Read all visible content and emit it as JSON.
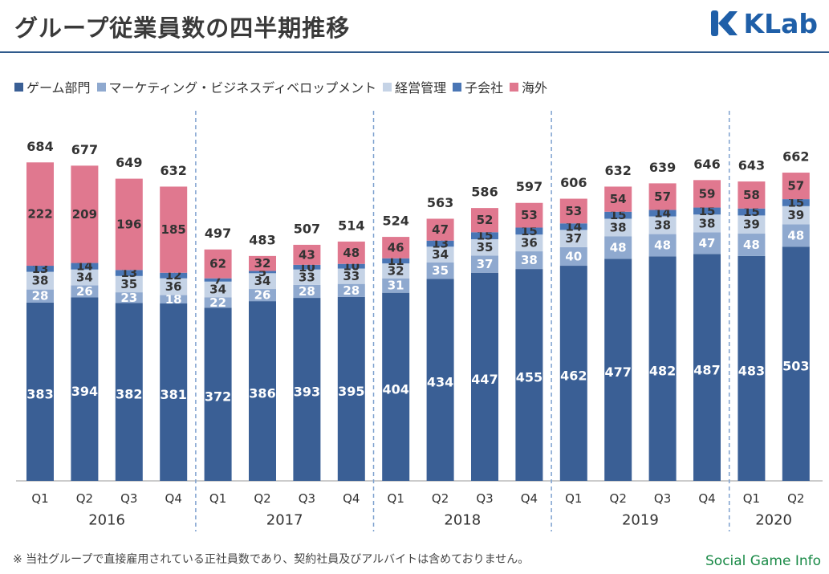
{
  "header": {
    "title": "グループ従業員数の四半期推移",
    "logo_text": "KLab",
    "rule_color": "#2f5a8c"
  },
  "footnote": "※ 当社グループで直接雇用されている正社員数であり、契約社員及びアルバイトは含めておりません。",
  "watermark": "Social Game Info",
  "chart_data": {
    "type": "bar",
    "stacked": true,
    "title": "",
    "xlabel": "",
    "ylabel": "",
    "ylim": [
      0,
      700
    ],
    "grid": false,
    "legend_position": "top-left",
    "years": [
      "2016",
      "2017",
      "2018",
      "2019",
      "2020"
    ],
    "groups": [
      4,
      4,
      4,
      4,
      2
    ],
    "categories": [
      "Q1",
      "Q2",
      "Q3",
      "Q4",
      "Q1",
      "Q2",
      "Q3",
      "Q4",
      "Q1",
      "Q2",
      "Q3",
      "Q4",
      "Q1",
      "Q2",
      "Q3",
      "Q4",
      "Q1",
      "Q2"
    ],
    "totals": [
      684,
      677,
      649,
      632,
      497,
      483,
      507,
      514,
      524,
      563,
      586,
      597,
      606,
      632,
      639,
      646,
      643,
      662
    ],
    "series": [
      {
        "name": "ゲーム部門",
        "color": "#3a5f95",
        "label_color": "#ffffff",
        "values": [
          383,
          394,
          382,
          381,
          372,
          386,
          393,
          395,
          404,
          434,
          447,
          455,
          462,
          477,
          482,
          487,
          483,
          503
        ]
      },
      {
        "name": "マーケティング・ビジネスディベロップメント",
        "color": "#8fa9cf",
        "label_color": "#ffffff",
        "values": [
          28,
          26,
          23,
          18,
          22,
          26,
          28,
          28,
          31,
          35,
          37,
          38,
          40,
          48,
          48,
          47,
          48,
          48
        ]
      },
      {
        "name": "経営管理",
        "color": "#c5d3e6",
        "label_color": "#333333",
        "values": [
          38,
          34,
          35,
          36,
          34,
          34,
          33,
          33,
          32,
          34,
          35,
          36,
          37,
          38,
          38,
          38,
          39,
          39
        ]
      },
      {
        "name": "子会社",
        "color": "#4a76b5",
        "label_color": "#333333",
        "values": [
          13,
          14,
          13,
          12,
          7,
          5,
          10,
          10,
          11,
          13,
          15,
          15,
          14,
          15,
          14,
          15,
          15,
          15
        ]
      },
      {
        "name": "海外",
        "color": "#e0788f",
        "label_color": "#333333",
        "values": [
          222,
          209,
          196,
          185,
          62,
          32,
          43,
          48,
          46,
          47,
          52,
          53,
          53,
          54,
          57,
          59,
          58,
          57
        ]
      }
    ]
  }
}
